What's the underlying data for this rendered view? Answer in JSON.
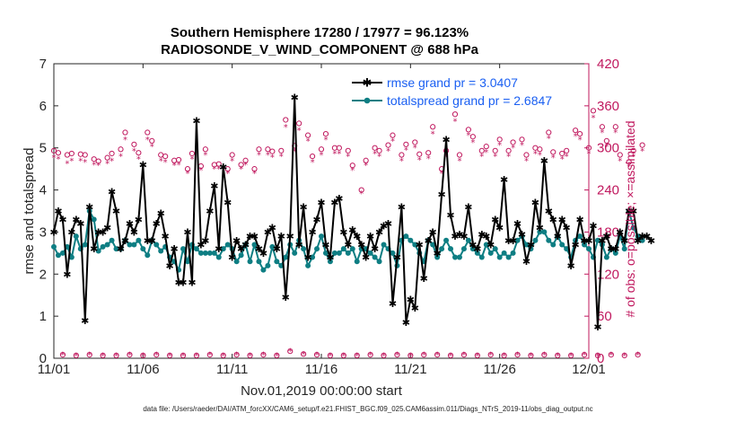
{
  "chart_data": {
    "type": "line",
    "title": "Southern Hemisphere 17280 / 17977 = 96.123%",
    "subtitle": "RADIOSONDE_V_WIND_COMPONENT @ 688 hPa",
    "xlabel": "Nov.01,2019 00:00:00 start",
    "ylabel": "rmse and totalspread",
    "ylabel_right": "# of obs: o=possible; ×=assimilated",
    "footnote": "data file: /Users/raeder/DAI/ATM_forcXX/CAM6_setup/f.e21.FHIST_BGC.f09_025.CAM6assim.011/Diags_NTrS_2019-11/obs_diag_output.nc",
    "xlim": [
      0,
      30
    ],
    "ylim": [
      0,
      7
    ],
    "ylim_right": [
      0,
      420
    ],
    "x_ticks": [
      0,
      5,
      10,
      15,
      20,
      25,
      30
    ],
    "x_tick_labels": [
      "11/01",
      "11/06",
      "11/11",
      "11/16",
      "11/21",
      "11/26",
      "12/01"
    ],
    "y_ticks": [
      0,
      1,
      2,
      3,
      4,
      5,
      6,
      7
    ],
    "y_tick_labels": [
      "0",
      "1",
      "2",
      "3",
      "4",
      "5",
      "6",
      "7"
    ],
    "y_ticks_right": [
      0,
      60,
      120,
      180,
      240,
      300,
      360,
      420
    ],
    "y_tick_labels_right": [
      "0",
      "60",
      "120",
      "180",
      "240",
      "300",
      "360",
      "420"
    ],
    "legend_position": "top-right",
    "x_step_days": 0.25,
    "series": [
      {
        "name": "rmse grand pr = 3.0407",
        "axis": "left",
        "color": "#000000",
        "marker": "star",
        "values": [
          3.0,
          3.5,
          3.3,
          2.0,
          3.0,
          3.3,
          3.2,
          0.9,
          3.6,
          2.6,
          3.0,
          3.0,
          3.1,
          3.96,
          3.5,
          2.6,
          2.8,
          3.2,
          3.0,
          3.3,
          4.6,
          2.8,
          2.8,
          3.2,
          3.45,
          2.9,
          2.2,
          2.6,
          1.8,
          1.8,
          3.0,
          1.8,
          5.65,
          2.7,
          2.8,
          3.5,
          4.1,
          2.6,
          4.55,
          3.7,
          2.4,
          2.8,
          2.6,
          2.7,
          2.9,
          2.9,
          2.6,
          2.5,
          3.0,
          3.1,
          2.6,
          2.9,
          1.45,
          2.9,
          6.2,
          2.7,
          3.6,
          2.4,
          3.0,
          3.3,
          3.7,
          2.7,
          2.4,
          3.7,
          3.8,
          3.0,
          2.7,
          3.05,
          2.9,
          2.7,
          2.4,
          2.9,
          2.6,
          3.0,
          3.15,
          3.2,
          1.3,
          2.4,
          3.6,
          0.85,
          1.4,
          1.2,
          2.7,
          1.9,
          2.8,
          3.0,
          2.5,
          3.9,
          5.2,
          3.4,
          2.9,
          2.95,
          2.9,
          3.6,
          2.7,
          2.6,
          2.95,
          2.9,
          2.7,
          3.3,
          3.1,
          4.25,
          2.8,
          2.8,
          3.2,
          2.95,
          2.3,
          2.7,
          3.7,
          3.1,
          4.7,
          3.5,
          3.3,
          2.9,
          3.3,
          3.1,
          2.2,
          2.7,
          3.3,
          2.8,
          2.8,
          3.15,
          0.75,
          2.8,
          2.9,
          2.6,
          2.6,
          3.0,
          2.8,
          3.5,
          3.5,
          2.8,
          2.9,
          2.9,
          2.8
        ]
      },
      {
        "name": "totalspread grand pr = 2.6847",
        "axis": "left",
        "color": "#0e7e83",
        "marker": "circle",
        "values": [
          2.65,
          2.45,
          2.5,
          2.65,
          2.4,
          2.9,
          2.6,
          2.7,
          3.5,
          3.3,
          2.55,
          2.65,
          2.7,
          2.8,
          2.6,
          2.6,
          2.8,
          2.7,
          2.7,
          2.8,
          2.6,
          2.45,
          2.8,
          2.7,
          2.55,
          2.65,
          2.4,
          2.3,
          2.1,
          2.6,
          2.3,
          2.7,
          2.6,
          2.5,
          2.5,
          2.5,
          2.5,
          2.4,
          2.6,
          2.7,
          2.6,
          2.3,
          2.45,
          2.7,
          2.3,
          2.7,
          2.3,
          2.1,
          2.2,
          2.65,
          2.3,
          2.2,
          2.4,
          2.7,
          2.5,
          2.8,
          2.6,
          2.2,
          2.4,
          2.6,
          2.9,
          2.5,
          2.3,
          2.5,
          2.5,
          2.6,
          2.5,
          2.6,
          2.3,
          2.6,
          2.6,
          2.5,
          2.4,
          2.3,
          2.7,
          2.6,
          2.5,
          2.2,
          2.8,
          2.9,
          2.8,
          2.7,
          2.5,
          2.3,
          2.8,
          2.7,
          2.4,
          2.6,
          2.8,
          2.6,
          2.4,
          2.4,
          2.6,
          2.8,
          2.6,
          2.5,
          2.4,
          2.7,
          2.5,
          2.6,
          2.4,
          2.5,
          2.4,
          2.5,
          2.8,
          2.9,
          2.7,
          2.6,
          2.8,
          3.0,
          3.0,
          2.8,
          2.7,
          2.9,
          2.7,
          2.6,
          2.4,
          2.8,
          2.9,
          2.7,
          2.6,
          2.4,
          2.8,
          2.7,
          2.4,
          2.6,
          2.5,
          2.9,
          2.6,
          3.5,
          3.1,
          2.9,
          2.8
        ]
      },
      {
        "name": "possible obs",
        "axis": "right",
        "color": "#c0185e",
        "marker": "open-circle",
        "values": [
          296,
          293,
          5,
          290,
          292,
          4,
          291,
          290,
          5,
          284,
          281,
          4,
          286,
          292,
          4,
          298,
          322,
          5,
          305,
          293,
          4,
          322,
          310,
          5,
          290,
          288,
          4,
          282,
          283,
          4,
          270,
          292,
          4,
          274,
          298,
          5,
          276,
          277,
          4,
          270,
          290,
          5,
          276,
          282,
          4,
          270,
          298,
          5,
          298,
          295,
          4,
          296,
          340,
          10,
          303,
          335,
          6,
          318,
          288,
          5,
          298,
          320,
          4,
          300,
          300,
          4,
          296,
          275,
          4,
          240,
          282,
          5,
          300,
          296,
          4,
          304,
          318,
          5,
          290,
          305,
          4,
          308,
          291,
          5,
          293,
          330,
          5,
          270,
          296,
          4,
          348,
          290,
          5,
          326,
          316,
          4,
          296,
          302,
          5,
          296,
          312,
          4,
          296,
          308,
          5,
          312,
          290,
          4,
          300,
          298,
          5,
          322,
          294,
          4,
          292,
          296,
          4,
          325,
          320,
          5,
          300,
          353,
          4,
          330,
          310,
          5,
          330,
          290,
          4,
          280,
          296,
          5,
          304
        ]
      },
      {
        "name": "assimilated obs",
        "axis": "right",
        "color": "#c0185e",
        "marker": "star",
        "values": [
          286,
          284,
          5,
          278,
          282,
          4,
          282,
          280,
          5,
          276,
          275,
          4,
          278,
          282,
          4,
          288,
          312,
          5,
          296,
          284,
          4,
          312,
          302,
          5,
          282,
          280,
          4,
          275,
          276,
          4,
          264,
          284,
          4,
          268,
          290,
          5,
          270,
          270,
          4,
          264,
          282,
          5,
          270,
          276,
          4,
          264,
          290,
          5,
          290,
          287,
          4,
          288,
          330,
          10,
          295,
          325,
          6,
          310,
          280,
          5,
          290,
          312,
          4,
          292,
          292,
          4,
          288,
          268,
          4,
          235,
          275,
          5,
          292,
          288,
          4,
          296,
          310,
          5,
          282,
          297,
          4,
          300,
          283,
          5,
          285,
          320,
          5,
          264,
          288,
          4,
          338,
          282,
          5,
          318,
          308,
          4,
          288,
          294,
          5,
          288,
          304,
          4,
          288,
          300,
          5,
          304,
          282,
          4,
          292,
          290,
          5,
          314,
          286,
          4,
          284,
          288,
          4,
          317,
          312,
          5,
          292,
          343,
          4,
          322,
          302,
          5,
          322,
          282,
          4,
          274,
          288,
          5,
          296
        ]
      }
    ]
  }
}
